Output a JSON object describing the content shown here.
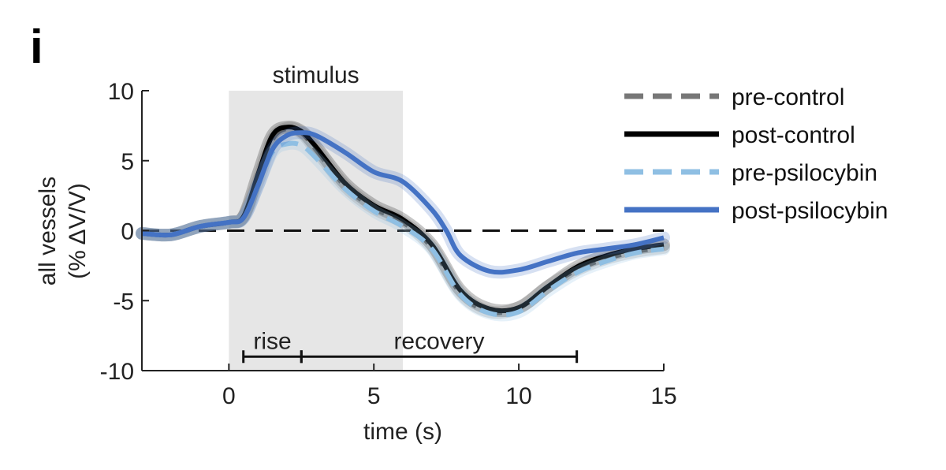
{
  "panel_label": "i",
  "chart_data": {
    "type": "line",
    "xlabel": "time (s)",
    "ylabel": [
      "all vessels",
      "(% ΔV/V)"
    ],
    "xlim": [
      -3,
      15
    ],
    "ylim": [
      -10,
      10
    ],
    "x_ticks": [
      0,
      5,
      10,
      15
    ],
    "y_ticks": [
      10,
      5,
      0,
      -5,
      -10
    ],
    "y_tick_labels": [
      "10",
      "5",
      "0",
      "-5",
      "-10"
    ],
    "grid": false,
    "legend_position": "top-right",
    "stimulus": {
      "label": "stimulus",
      "start": 0,
      "end": 6,
      "color": "#e6e6e6"
    },
    "zero_line": {
      "y": 0,
      "style": "dashed",
      "color": "#111111"
    },
    "phases": [
      {
        "label": "rise",
        "start": 0.5,
        "end": 2.5
      },
      {
        "label": "recovery",
        "start": 2.5,
        "end": 12
      }
    ],
    "phase_bar_y": -9,
    "series": [
      {
        "name": "pre-control",
        "color": "#777777",
        "dash": true,
        "x": [
          -3,
          -2,
          -1,
          0,
          0.5,
          1,
          1.5,
          2,
          2.5,
          3,
          4,
          5,
          6,
          7,
          8,
          9,
          10,
          11,
          12,
          13,
          14,
          15
        ],
        "y": [
          -0.2,
          -0.3,
          0.3,
          0.6,
          1.0,
          3.5,
          6.5,
          7.3,
          7.0,
          5.8,
          3.2,
          1.6,
          0.6,
          -1.2,
          -4.5,
          -5.8,
          -5.5,
          -4.0,
          -2.8,
          -2.0,
          -1.5,
          -1.2
        ]
      },
      {
        "name": "post-control",
        "color": "#000000",
        "dash": false,
        "x": [
          -3,
          -2,
          -1,
          0,
          0.5,
          1,
          1.5,
          2,
          2.5,
          3,
          4,
          5,
          6,
          7,
          8,
          9,
          10,
          11,
          12,
          13,
          14,
          15
        ],
        "y": [
          -0.2,
          -0.3,
          0.3,
          0.6,
          1.0,
          4.0,
          6.8,
          7.4,
          7.1,
          6.0,
          3.4,
          1.8,
          0.8,
          -1.0,
          -4.3,
          -5.6,
          -5.5,
          -4.0,
          -2.6,
          -1.8,
          -1.3,
          -1.0
        ]
      },
      {
        "name": "pre-psilocybin",
        "color": "#8fbfe3",
        "dash": true,
        "x": [
          -3,
          -2,
          -1,
          0,
          0.5,
          1,
          1.5,
          2,
          2.5,
          3,
          4,
          5,
          6,
          7,
          8,
          9,
          10,
          11,
          12,
          13,
          14,
          15
        ],
        "y": [
          -0.2,
          -0.3,
          0.3,
          0.6,
          0.9,
          3.2,
          5.6,
          6.2,
          6.1,
          5.2,
          3.0,
          1.4,
          0.3,
          -1.3,
          -4.6,
          -5.9,
          -5.8,
          -4.3,
          -3.0,
          -2.2,
          -1.6,
          -1.3
        ]
      },
      {
        "name": "post-psilocybin",
        "color": "#4472c4",
        "dash": false,
        "x": [
          -3,
          -2,
          -1,
          0,
          0.5,
          1,
          1.5,
          2,
          2.5,
          3,
          4,
          5,
          6,
          7,
          7.5,
          8,
          9,
          10,
          11,
          12,
          13,
          14,
          15
        ],
        "y": [
          -0.2,
          -0.3,
          0.3,
          0.6,
          0.9,
          3.2,
          5.8,
          6.8,
          7.0,
          6.8,
          5.6,
          4.2,
          3.5,
          1.5,
          0.0,
          -1.8,
          -2.9,
          -2.8,
          -2.2,
          -1.6,
          -1.3,
          -1.0,
          -0.5
        ]
      }
    ]
  }
}
